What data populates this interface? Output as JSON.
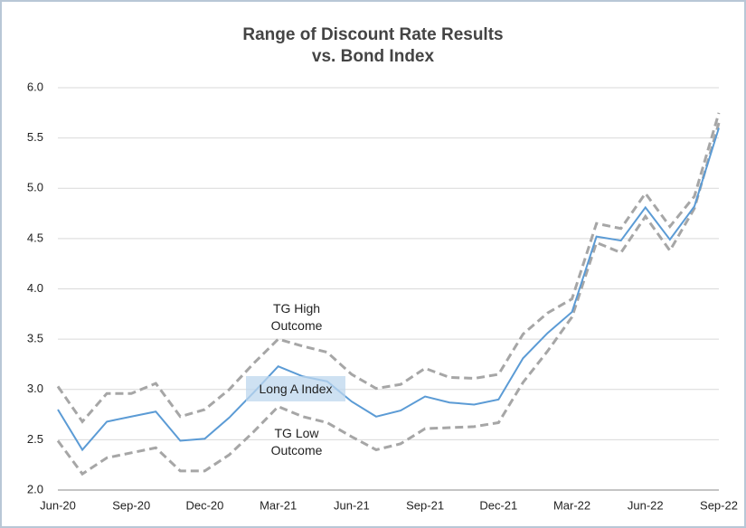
{
  "chart_data": {
    "type": "line",
    "title": "Range of Discount Rate Results",
    "subtitle": "vs. Bond Index",
    "categories": [
      "Jun-20",
      null,
      null,
      "Sep-20",
      null,
      null,
      "Dec-20",
      null,
      null,
      "Mar-21",
      null,
      null,
      "Jun-21",
      null,
      null,
      "Sep-21",
      null,
      null,
      "Dec-21",
      null,
      null,
      "Mar-22",
      null,
      null,
      "Jun-22",
      null,
      null,
      "Sep-22"
    ],
    "series": [
      {
        "name": "Long A Index",
        "color": "#5b9bd5",
        "style": "solid",
        "values": [
          2.8,
          2.4,
          2.68,
          2.73,
          2.78,
          2.49,
          2.51,
          2.72,
          2.97,
          3.23,
          3.13,
          3.08,
          2.88,
          2.73,
          2.79,
          2.93,
          2.87,
          2.85,
          2.9,
          3.31,
          3.56,
          3.77,
          4.52,
          4.48,
          4.81,
          4.49,
          4.82,
          5.6
        ]
      },
      {
        "name": "TG High Outcome",
        "color": "#a6a6a6",
        "style": "dashed",
        "values": [
          3.03,
          2.68,
          2.96,
          2.96,
          3.06,
          2.73,
          2.8,
          3.0,
          3.26,
          3.5,
          3.43,
          3.37,
          3.15,
          3.01,
          3.05,
          3.21,
          3.12,
          3.11,
          3.15,
          3.55,
          3.76,
          3.9,
          4.65,
          4.6,
          4.95,
          4.62,
          4.92,
          5.75
        ]
      },
      {
        "name": "TG Low Outcome",
        "color": "#a6a6a6",
        "style": "dashed",
        "values": [
          2.49,
          2.16,
          2.32,
          2.37,
          2.42,
          2.19,
          2.19,
          2.35,
          2.58,
          2.83,
          2.73,
          2.67,
          2.53,
          2.4,
          2.46,
          2.61,
          2.62,
          2.63,
          2.67,
          3.07,
          3.38,
          3.72,
          4.46,
          4.36,
          4.72,
          4.38,
          4.8,
          5.65
        ]
      }
    ],
    "ylim": [
      2,
      6
    ],
    "yticks": [
      {
        "value": 2,
        "label": "2.0"
      },
      {
        "value": 2.5,
        "label": "2.5"
      },
      {
        "value": 3,
        "label": "3.0"
      },
      {
        "value": 3.5,
        "label": "3.5"
      },
      {
        "value": 4,
        "label": "4.0"
      },
      {
        "value": 4.5,
        "label": "4.5"
      },
      {
        "value": 5,
        "label": "5.0"
      },
      {
        "value": 5.5,
        "label": "5.5"
      },
      {
        "value": 6,
        "label": "6.0"
      }
    ],
    "grid": true
  }
}
